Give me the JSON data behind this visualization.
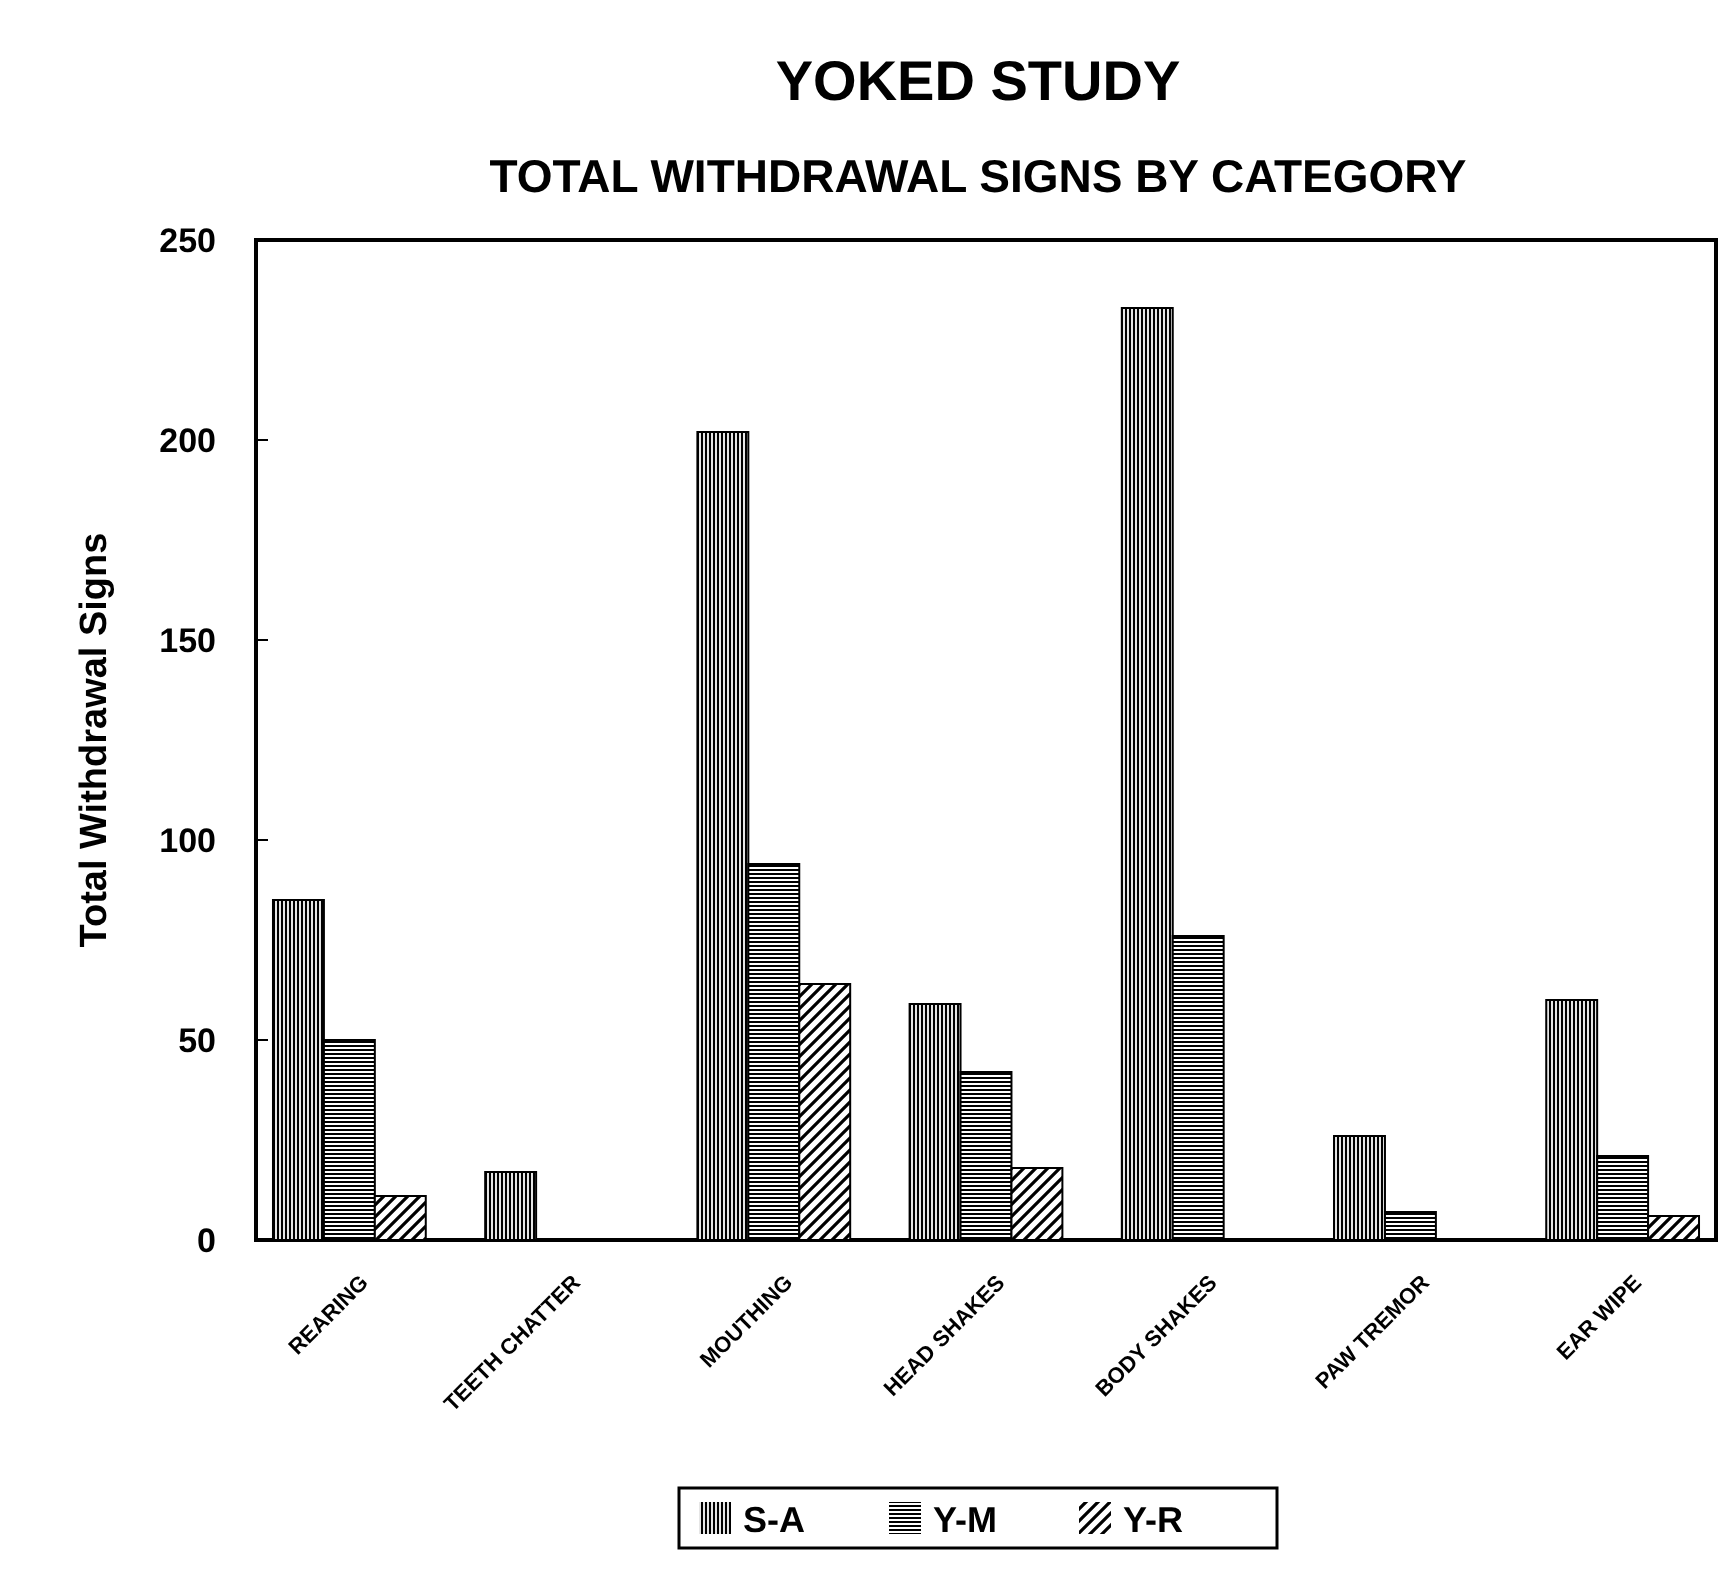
{
  "chart_data": {
    "type": "bar",
    "title": "YOKED STUDY",
    "subtitle": "TOTAL WITHDRAWAL SIGNS BY CATEGORY",
    "ylabel": "Total Withdrawal Signs",
    "categories": [
      "REARING",
      "TEETH CHATTER",
      "MOUTHING",
      "HEAD SHAKES",
      "BODY SHAKES",
      "PAW TREMOR",
      "EAR WIPE"
    ],
    "series": [
      {
        "name": "S-A",
        "color": "#000000",
        "values": [
          85,
          17,
          202,
          59,
          233,
          26,
          60
        ]
      },
      {
        "name": "Y-M",
        "color": "#000000",
        "values": [
          50,
          0,
          94,
          42,
          76,
          7,
          21
        ]
      },
      {
        "name": "Y-R",
        "color": "#000000",
        "values": [
          11,
          0,
          64,
          18,
          0,
          0,
          6
        ]
      }
    ],
    "ylim": [
      0,
      250
    ],
    "yticks": [
      0,
      50,
      100,
      150,
      200,
      250
    ],
    "grid": false,
    "legend": "bottom"
  }
}
